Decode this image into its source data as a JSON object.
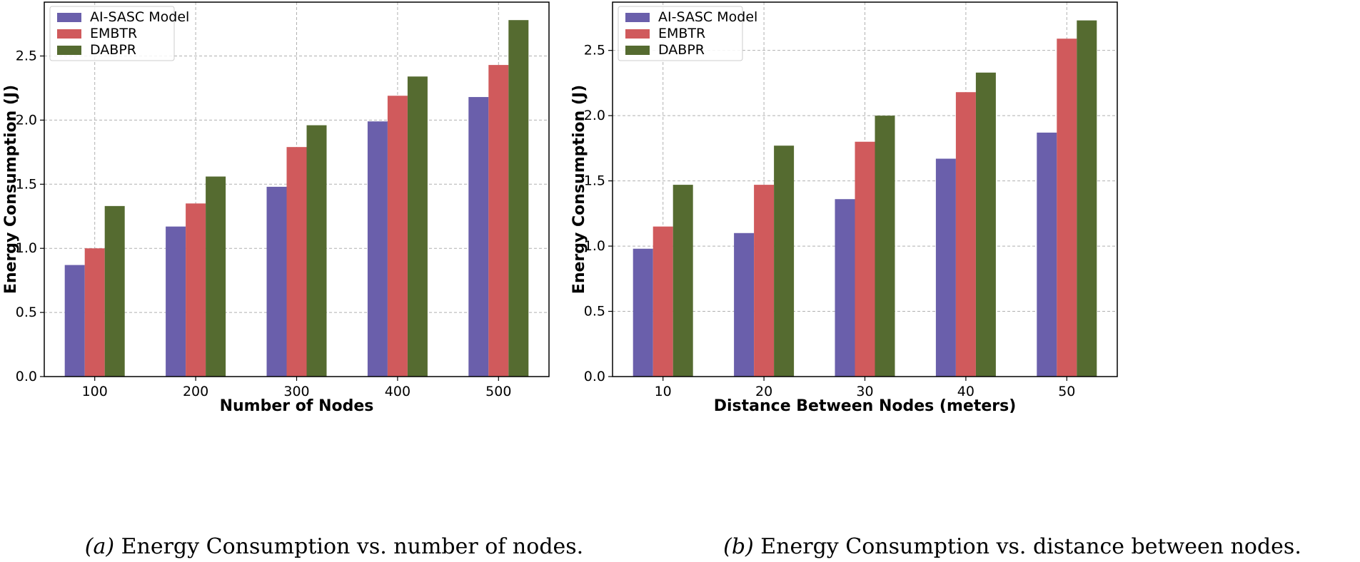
{
  "colors": {
    "AI-SASC Model": "#6a5fab",
    "EMBTR": "#d05a5c",
    "DABPR": "#556b30",
    "grid": "#b0b0b0",
    "axis": "#000000"
  },
  "chart_data": [
    {
      "type": "bar",
      "categories": [
        "100",
        "200",
        "300",
        "400",
        "500"
      ],
      "series": [
        {
          "name": "AI-SASC Model",
          "values": [
            0.87,
            1.17,
            1.48,
            1.99,
            2.18
          ]
        },
        {
          "name": "EMBTR",
          "values": [
            1.0,
            1.35,
            1.79,
            2.19,
            2.43
          ]
        },
        {
          "name": "DABPR",
          "values": [
            1.33,
            1.56,
            1.96,
            2.34,
            2.78
          ]
        }
      ],
      "xlabel": "Number of Nodes",
      "ylabel": "Energy Consumption (J)",
      "ylim": [
        0,
        2.92
      ],
      "yticks": [
        "0.0",
        "0.5",
        "1.0",
        "1.5",
        "2.0",
        "2.5"
      ],
      "grid": true,
      "legend_position": "top-left",
      "caption_label": "(a)",
      "caption_text": " Energy Consumption vs. number of nodes."
    },
    {
      "type": "bar",
      "categories": [
        "10",
        "20",
        "30",
        "40",
        "50"
      ],
      "series": [
        {
          "name": "AI-SASC Model",
          "values": [
            0.98,
            1.1,
            1.36,
            1.67,
            1.87
          ]
        },
        {
          "name": "EMBTR",
          "values": [
            1.15,
            1.47,
            1.8,
            2.18,
            2.59
          ]
        },
        {
          "name": "DABPR",
          "values": [
            1.47,
            1.77,
            2.0,
            2.33,
            2.73
          ]
        }
      ],
      "xlabel": "Distance Between Nodes (meters)",
      "ylabel": "Energy Consumption (J)",
      "ylim": [
        0,
        2.87
      ],
      "yticks": [
        "0.0",
        "0.5",
        "1.0",
        "1.5",
        "2.0",
        "2.5"
      ],
      "grid": true,
      "legend_position": "top-left",
      "caption_label": "(b)",
      "caption_text": " Energy Consumption vs. distance between nodes."
    }
  ]
}
